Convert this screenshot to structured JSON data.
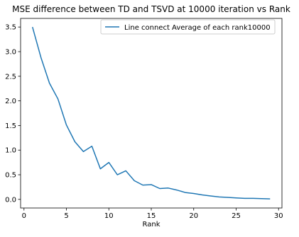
{
  "chart_data": {
    "type": "line",
    "title": "MSE difference between TD and TSVD at 10000 iteration vs Rank",
    "xlabel": "Rank",
    "ylabel": "",
    "xlim": [
      -0.4,
      30.4
    ],
    "ylim": [
      -0.175,
      3.675
    ],
    "x_ticks": [
      0,
      5,
      10,
      15,
      20,
      25,
      30
    ],
    "y_ticks": [
      0.0,
      0.5,
      1.0,
      1.5,
      2.0,
      2.5,
      3.0,
      3.5
    ],
    "x_tick_labels": [
      "0",
      "5",
      "10",
      "15",
      "20",
      "25",
      "30"
    ],
    "y_tick_labels": [
      "0.0",
      "0.5",
      "1.0",
      "1.5",
      "2.0",
      "2.5",
      "3.0",
      "3.5"
    ],
    "grid": false,
    "legend_position": "upper-right",
    "series": [
      {
        "name": "Line connect Average of each rank10000",
        "color": "#1f77b4",
        "x": [
          1,
          2,
          3,
          4,
          5,
          6,
          7,
          8,
          9,
          10,
          11,
          12,
          13,
          14,
          15,
          16,
          17,
          18,
          19,
          20,
          21,
          22,
          23,
          24,
          25,
          26,
          27,
          28,
          29
        ],
        "y": [
          3.5,
          2.88,
          2.36,
          2.04,
          1.51,
          1.17,
          0.97,
          1.08,
          0.62,
          0.75,
          0.5,
          0.58,
          0.38,
          0.29,
          0.3,
          0.22,
          0.23,
          0.19,
          0.14,
          0.12,
          0.09,
          0.07,
          0.05,
          0.04,
          0.03,
          0.02,
          0.02,
          0.015,
          0.01
        ]
      }
    ]
  }
}
